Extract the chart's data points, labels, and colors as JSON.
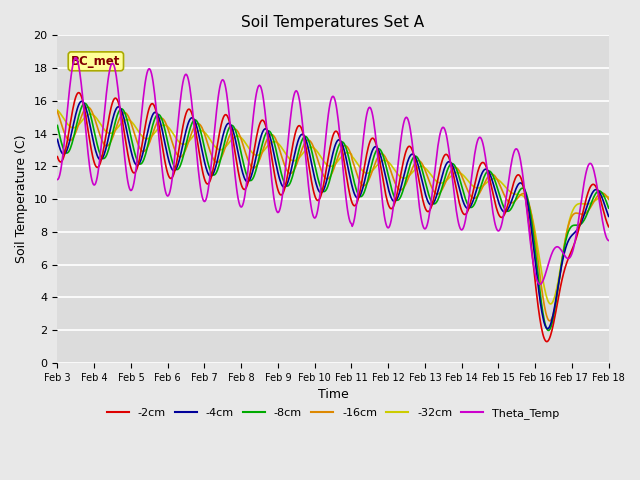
{
  "title": "Soil Temperatures Set A",
  "xlabel": "Time",
  "ylabel": "Soil Temperature (C)",
  "ylim": [
    0,
    20
  ],
  "xlim": [
    0,
    360
  ],
  "fig_bg": "#e8e8e8",
  "plot_bg": "#dcdcdc",
  "grid_color": "white",
  "annotation_text": "BC_met",
  "annotation_bg": "#ffff99",
  "annotation_border": "#aaaa00",
  "annotation_text_color": "#800000",
  "series": {
    "-2cm": {
      "color": "#dd0000",
      "lw": 1.2
    },
    "-4cm": {
      "color": "#000099",
      "lw": 1.2
    },
    "-8cm": {
      "color": "#00aa00",
      "lw": 1.2
    },
    "-16cm": {
      "color": "#dd8800",
      "lw": 1.2
    },
    "-32cm": {
      "color": "#cccc00",
      "lw": 1.2
    },
    "Theta_Temp": {
      "color": "#cc00cc",
      "lw": 1.2
    }
  },
  "xtick_labels": [
    "Feb 3",
    "Feb 4",
    "Feb 5",
    "Feb 6",
    "Feb 7",
    "Feb 8",
    "Feb 9",
    "Feb 10",
    "Feb 11",
    "Feb 12",
    "Feb 13",
    "Feb 14",
    "Feb 15",
    "Feb 16",
    "Feb 17",
    "Feb 18"
  ],
  "xtick_positions": [
    0,
    24,
    48,
    72,
    96,
    120,
    144,
    168,
    192,
    216,
    240,
    264,
    288,
    312,
    336,
    360
  ],
  "ytick_labels": [
    "0",
    "2",
    "4",
    "6",
    "8",
    "10",
    "12",
    "14",
    "16",
    "18",
    "20"
  ],
  "ytick_positions": [
    0,
    2,
    4,
    6,
    8,
    10,
    12,
    14,
    16,
    18,
    20
  ]
}
